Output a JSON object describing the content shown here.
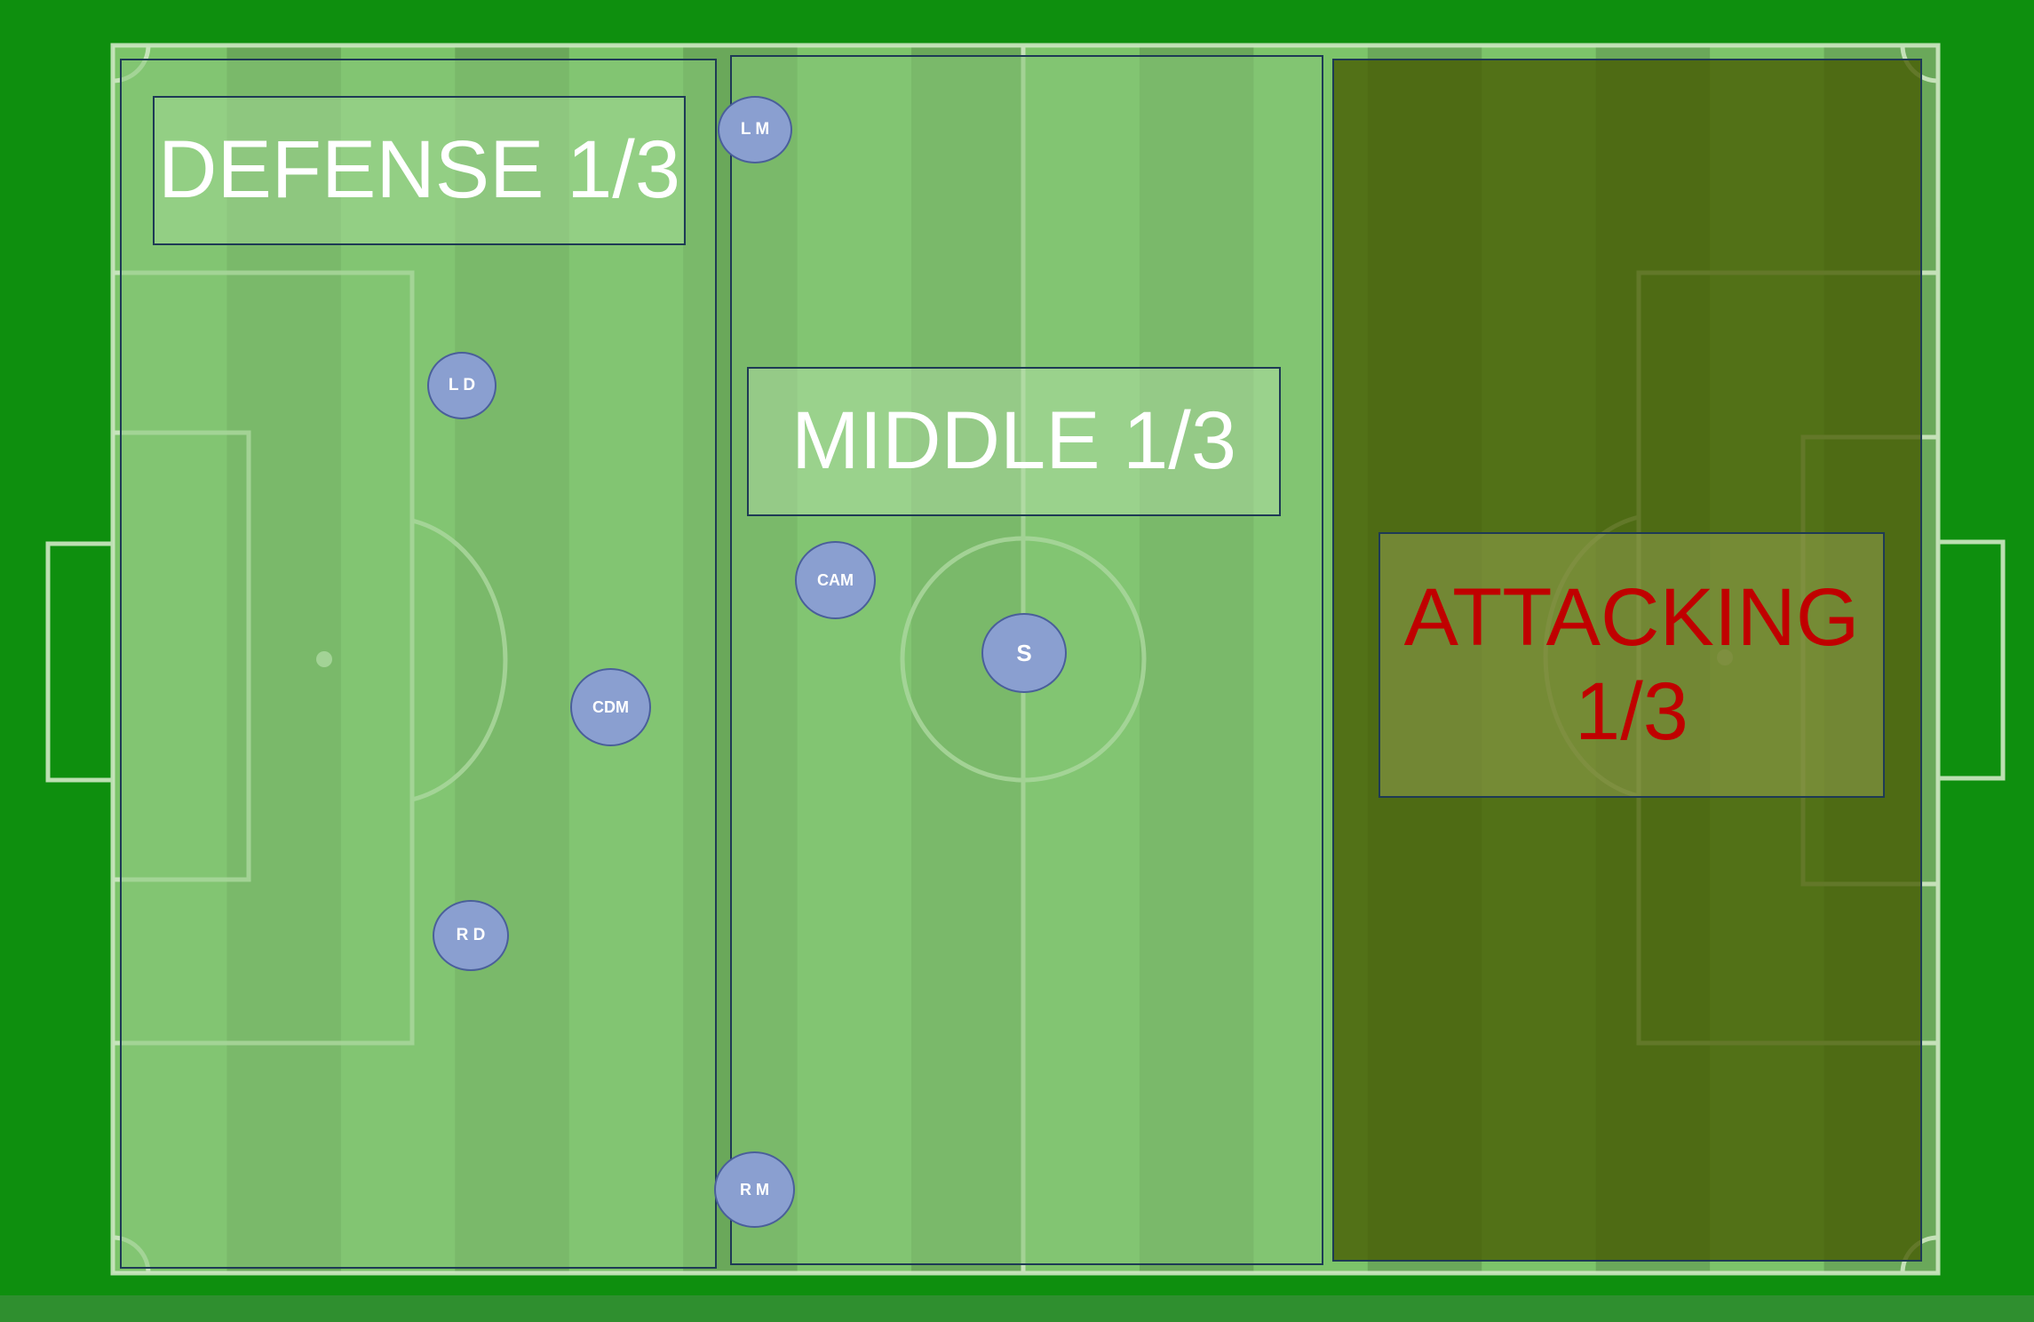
{
  "zones": {
    "defense": {
      "label": "DEFENSE 1/3"
    },
    "middle": {
      "label": "MIDDLE 1/3"
    },
    "attacking": {
      "label_line1": "ATTACKING",
      "label_line2": "1/3"
    }
  },
  "players": {
    "lm": "L M",
    "ld": "L D",
    "cdm": "CDM",
    "rd": "R D",
    "rm": "R M",
    "cam": "CAM",
    "s": "S"
  },
  "colors": {
    "outer_grass": "#0e8f0e",
    "field_stripe_light": "#7cc46a",
    "field_stripe_dark": "#6aa85a",
    "pitch_lines": "#cfe8c4",
    "attack_overlay": "#465a00",
    "attack_label": "#c00000",
    "player_fill": "#8a9fd0",
    "zone_border": "#1e3a55"
  }
}
